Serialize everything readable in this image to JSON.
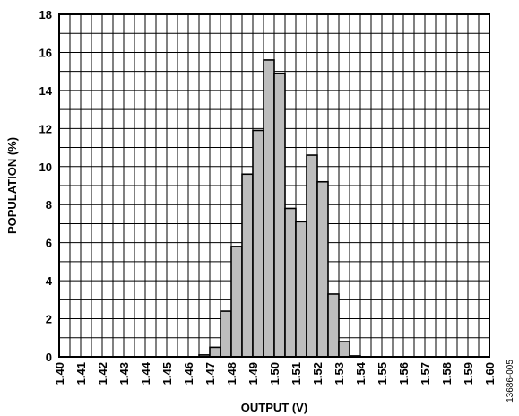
{
  "chart_data": {
    "type": "bar",
    "title": "",
    "xlabel": "OUTPUT (V)",
    "ylabel": "POPULATION (%)",
    "figure_code": "13686-005",
    "ylim": [
      0,
      18
    ],
    "xlim": [
      1.4,
      1.6
    ],
    "y_ticks": [
      "0",
      "2",
      "4",
      "6",
      "8",
      "10",
      "12",
      "14",
      "16",
      "18"
    ],
    "x_ticks": [
      "1.40",
      "1.41",
      "1.42",
      "1.43",
      "1.44",
      "1.45",
      "1.46",
      "1.47",
      "1.48",
      "1.49",
      "1.50",
      "1.51",
      "1.52",
      "1.53",
      "1.54",
      "1.55",
      "1.56",
      "1.57",
      "1.58",
      "1.59",
      "1.60"
    ],
    "grid": true,
    "bin_width": 0.005,
    "bins": [
      {
        "x": 1.465,
        "value": 0.1
      },
      {
        "x": 1.47,
        "value": 0.5
      },
      {
        "x": 1.475,
        "value": 2.4
      },
      {
        "x": 1.48,
        "value": 5.8
      },
      {
        "x": 1.485,
        "value": 9.6
      },
      {
        "x": 1.49,
        "value": 11.9
      },
      {
        "x": 1.495,
        "value": 15.6
      },
      {
        "x": 1.5,
        "value": 14.9
      },
      {
        "x": 1.505,
        "value": 7.8
      },
      {
        "x": 1.51,
        "value": 7.1
      },
      {
        "x": 1.515,
        "value": 10.6
      },
      {
        "x": 1.52,
        "value": 9.2
      },
      {
        "x": 1.525,
        "value": 3.3
      },
      {
        "x": 1.53,
        "value": 0.8
      },
      {
        "x": 1.535,
        "value": 0.05
      }
    ],
    "colors": {
      "bar_fill": "#bdbdbd",
      "bar_stroke": "#000000",
      "grid": "#000000"
    }
  }
}
